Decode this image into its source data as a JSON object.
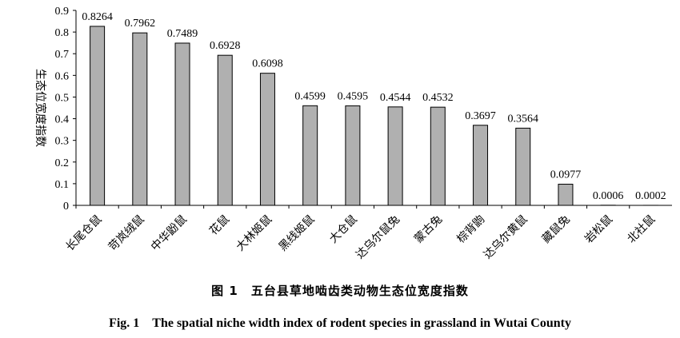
{
  "chart_data": {
    "type": "bar",
    "title": "",
    "xlabel": "",
    "ylabel": "生态位宽度指数",
    "ylim": [
      0,
      0.9
    ],
    "yticks": [
      "0",
      "0.1",
      "0.2",
      "0.3",
      "0.4",
      "0.5",
      "0.6",
      "0.7",
      "0.8",
      "0.9"
    ],
    "categories": [
      "长尾仓鼠",
      "苛岚绒鼠",
      "中华鼢鼠",
      "花鼠",
      "大林姬鼠",
      "黑线姬鼠",
      "大仓鼠",
      "达乌尔鼠兔",
      "蒙古兔",
      "棕背鼩",
      "达乌尔黄鼠",
      "藏鼠兔",
      "岩松鼠",
      "北社鼠"
    ],
    "values": [
      0.8264,
      0.7962,
      0.7489,
      0.6928,
      0.6098,
      0.4599,
      0.4595,
      0.4544,
      0.4532,
      0.3697,
      0.3564,
      0.0977,
      0.0006,
      0.0002
    ],
    "value_labels": [
      "0.8264",
      "0.7962",
      "0.7489",
      "0.6928",
      "0.6098",
      "0.4599",
      "0.4595",
      "0.4544",
      "0.4532",
      "0.3697",
      "0.3564",
      "0.0977",
      "0.0006",
      "0.0002"
    ],
    "bar_color": "#b0b0b0",
    "grid": false,
    "legend": "none"
  },
  "caption": {
    "cn": "图 1　五台县草地啮齿类动物生态位宽度指数",
    "en": "Fig. 1　The spatial niche width index of rodent species in grassland in Wutai County"
  }
}
